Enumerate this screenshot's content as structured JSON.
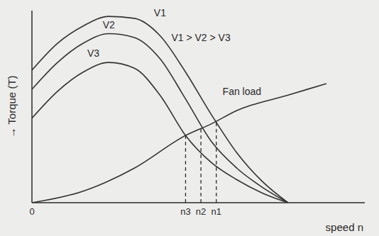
{
  "chart_data": {
    "type": "line",
    "x_label": "speed n",
    "y_label": "→ Torque (T)",
    "xlim": [
      0,
      130
    ],
    "ylim": [
      0,
      100
    ],
    "xticks": [
      0,
      {
        "value": 60,
        "label": "n3"
      },
      {
        "value": 66,
        "label": "n2"
      },
      {
        "value": 72,
        "label": "n1"
      }
    ],
    "tick_labels": "x",
    "grid": false,
    "series": [
      {
        "name": "V1",
        "color": "#333333",
        "x": [
          0,
          10,
          20,
          30,
          40,
          50,
          60,
          70,
          80,
          90,
          100
        ],
        "values": [
          69,
          83,
          92,
          97,
          96,
          87,
          68,
          46,
          26,
          11,
          0
        ],
        "label_at": [
          50,
          99
        ]
      },
      {
        "name": "V2",
        "color": "#333333",
        "x": [
          0,
          10,
          20,
          30,
          40,
          50,
          60,
          70,
          80,
          90,
          100
        ],
        "values": [
          59,
          73,
          83,
          88,
          86,
          75,
          54,
          32,
          18,
          8,
          0
        ],
        "label_at": [
          30,
          92.5
        ]
      },
      {
        "name": "V3",
        "color": "#333333",
        "x": [
          0,
          10,
          20,
          30,
          40,
          50,
          60,
          70,
          80,
          90,
          100
        ],
        "values": [
          44,
          58,
          68,
          73,
          70,
          56,
          35,
          21,
          12,
          5,
          0
        ],
        "label_at": [
          24,
          78
        ]
      },
      {
        "name": "Fan load",
        "color": "#333333",
        "x": [
          0,
          20,
          40,
          60,
          70,
          80,
          100,
          115
        ],
        "values": [
          0,
          6,
          18,
          35,
          41,
          48,
          56,
          62
        ],
        "label_at": [
          82,
          58
        ]
      }
    ],
    "operating_points": [
      {
        "x": 60,
        "y": 35
      },
      {
        "x": 66,
        "y": 39
      },
      {
        "x": 72,
        "y": 42
      }
    ],
    "annotations": [
      {
        "text": "V1 > V2 > V3",
        "x": 66,
        "y": 86
      }
    ]
  }
}
